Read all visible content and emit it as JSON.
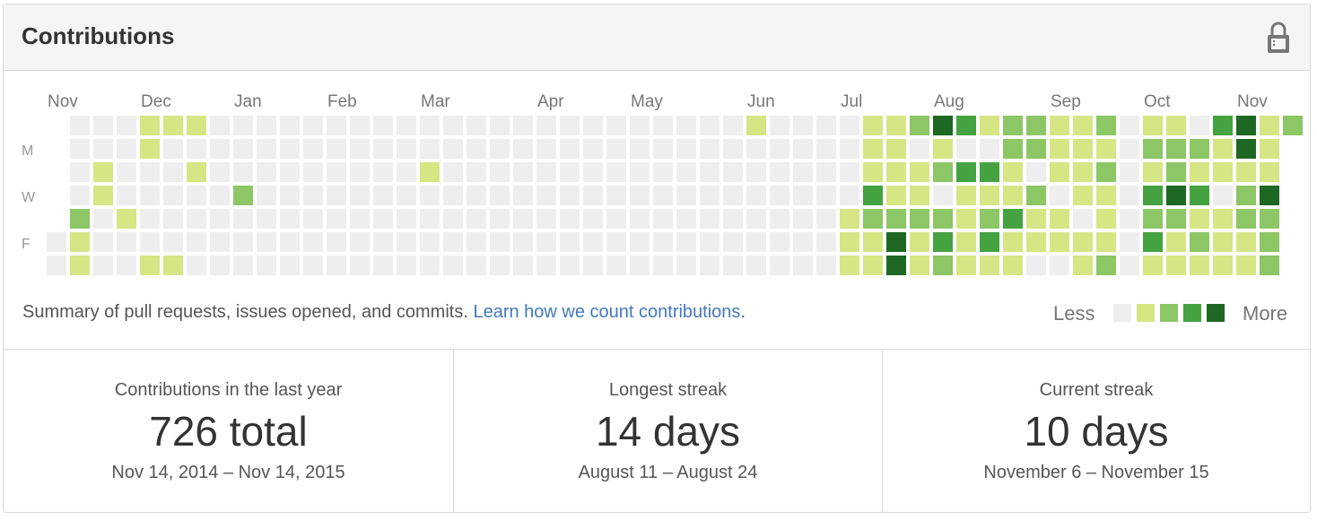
{
  "header": {
    "title": "Contributions",
    "lock_icon": "lock-icon"
  },
  "calendar": {
    "months": [
      "Nov",
      "Dec",
      "Jan",
      "Feb",
      "Mar",
      "Apr",
      "May",
      "Jun",
      "Jul",
      "Aug",
      "Sep",
      "Oct",
      "Nov"
    ],
    "day_labels": [
      "M",
      "W",
      "F"
    ],
    "colors": [
      "#eeeeee",
      "#d6e685",
      "#8cc665",
      "#44a340",
      "#1e6823"
    ],
    "weeks": [
      [
        0,
        0,
        0,
        0,
        0,
        0,
        0
      ],
      [
        0,
        0,
        0,
        0,
        2,
        1,
        1
      ],
      [
        0,
        0,
        1,
        1,
        0,
        0,
        0
      ],
      [
        0,
        0,
        0,
        0,
        1,
        0,
        0
      ],
      [
        1,
        1,
        0,
        0,
        0,
        0,
        1
      ],
      [
        1,
        0,
        0,
        0,
        0,
        0,
        1
      ],
      [
        1,
        0,
        1,
        0,
        0,
        0,
        0
      ],
      [
        0,
        0,
        0,
        0,
        0,
        0,
        0
      ],
      [
        0,
        0,
        0,
        2,
        0,
        0,
        0
      ],
      [
        0,
        0,
        0,
        0,
        0,
        0,
        0
      ],
      [
        0,
        0,
        0,
        0,
        0,
        0,
        0
      ],
      [
        0,
        0,
        0,
        0,
        0,
        0,
        0
      ],
      [
        0,
        0,
        0,
        0,
        0,
        0,
        0
      ],
      [
        0,
        0,
        0,
        0,
        0,
        0,
        0
      ],
      [
        0,
        0,
        0,
        0,
        0,
        0,
        0
      ],
      [
        0,
        0,
        0,
        0,
        0,
        0,
        0
      ],
      [
        0,
        0,
        1,
        0,
        0,
        0,
        0
      ],
      [
        0,
        0,
        0,
        0,
        0,
        0,
        0
      ],
      [
        0,
        0,
        0,
        0,
        0,
        0,
        0
      ],
      [
        0,
        0,
        0,
        0,
        0,
        0,
        0
      ],
      [
        0,
        0,
        0,
        0,
        0,
        0,
        0
      ],
      [
        0,
        0,
        0,
        0,
        0,
        0,
        0
      ],
      [
        0,
        0,
        0,
        0,
        0,
        0,
        0
      ],
      [
        0,
        0,
        0,
        0,
        0,
        0,
        0
      ],
      [
        0,
        0,
        0,
        0,
        0,
        0,
        0
      ],
      [
        0,
        0,
        0,
        0,
        0,
        0,
        0
      ],
      [
        0,
        0,
        0,
        0,
        0,
        0,
        0
      ],
      [
        0,
        0,
        0,
        0,
        0,
        0,
        0
      ],
      [
        0,
        0,
        0,
        0,
        0,
        0,
        0
      ],
      [
        0,
        0,
        0,
        0,
        0,
        0,
        0
      ],
      [
        1,
        0,
        0,
        0,
        0,
        0,
        0
      ],
      [
        0,
        0,
        0,
        0,
        0,
        0,
        0
      ],
      [
        0,
        0,
        0,
        0,
        0,
        0,
        0
      ],
      [
        0,
        0,
        0,
        0,
        0,
        0,
        0
      ],
      [
        0,
        0,
        0,
        0,
        1,
        1,
        1
      ],
      [
        1,
        1,
        1,
        3,
        2,
        1,
        1
      ],
      [
        1,
        1,
        1,
        1,
        2,
        4,
        4
      ],
      [
        2,
        0,
        1,
        1,
        2,
        1,
        1
      ],
      [
        4,
        1,
        2,
        0,
        2,
        3,
        2
      ],
      [
        3,
        0,
        3,
        1,
        1,
        1,
        1
      ],
      [
        1,
        0,
        3,
        1,
        2,
        3,
        1
      ],
      [
        2,
        2,
        1,
        1,
        3,
        1,
        1
      ],
      [
        2,
        2,
        0,
        2,
        1,
        1,
        0
      ],
      [
        1,
        1,
        1,
        0,
        1,
        1,
        0
      ],
      [
        1,
        1,
        1,
        1,
        0,
        1,
        1
      ],
      [
        2,
        1,
        2,
        1,
        1,
        1,
        2
      ],
      [
        0,
        0,
        0,
        0,
        0,
        0,
        0
      ],
      [
        1,
        2,
        1,
        3,
        2,
        3,
        1
      ],
      [
        1,
        2,
        2,
        4,
        2,
        1,
        1
      ],
      [
        0,
        2,
        1,
        3,
        1,
        2,
        1
      ],
      [
        3,
        1,
        1,
        0,
        1,
        1,
        1
      ],
      [
        4,
        4,
        1,
        2,
        2,
        1,
        1
      ],
      [
        1,
        1,
        1,
        4,
        2,
        2,
        2
      ],
      [
        2,
        0,
        0,
        0,
        0,
        0,
        0
      ]
    ]
  },
  "summary": {
    "text": "Summary of pull requests, issues opened, and commits.",
    "link": "Learn how we count contributions",
    "period": "."
  },
  "legend": {
    "less": "Less",
    "more": "More"
  },
  "stats": [
    {
      "label": "Contributions in the last year",
      "value": "726 total",
      "range": "Nov 14, 2014 – Nov 14, 2015"
    },
    {
      "label": "Longest streak",
      "value": "14 days",
      "range": "August 11 – August 24"
    },
    {
      "label": "Current streak",
      "value": "10 days",
      "range": "November 6 – November 15"
    }
  ]
}
